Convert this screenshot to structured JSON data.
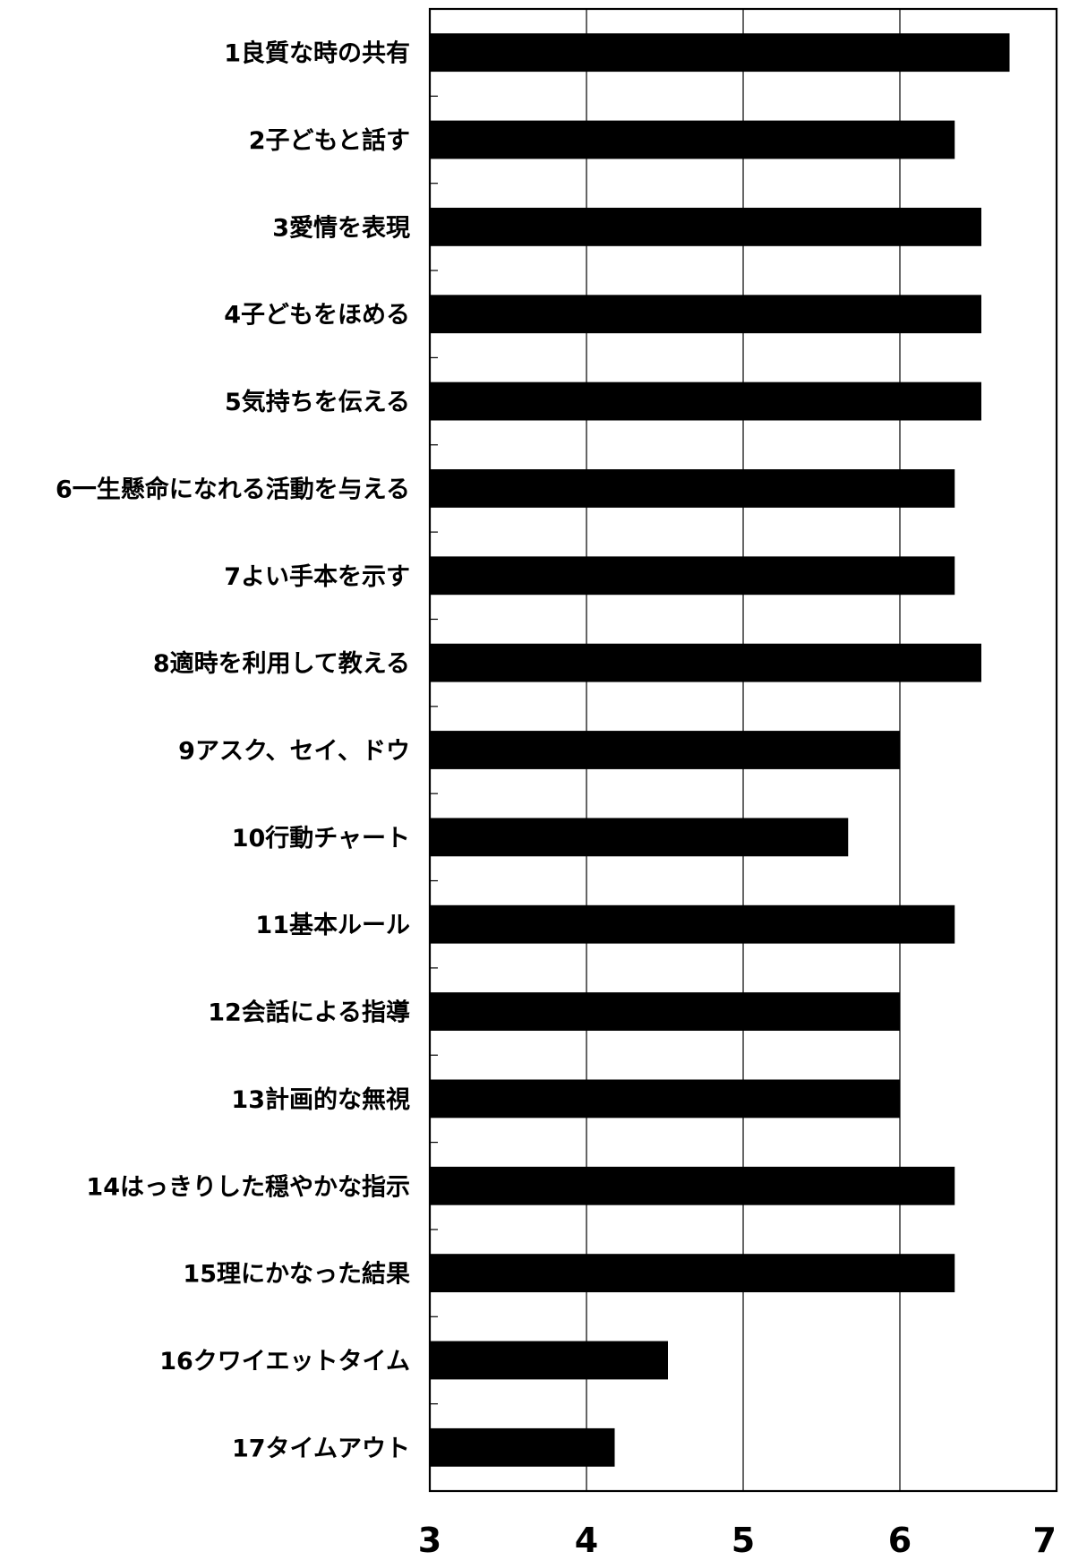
{
  "chart_data": {
    "type": "bar",
    "orientation": "horizontal",
    "title": "",
    "xlabel": "",
    "ylabel": "",
    "categories": [
      "1良質な時の共有",
      "2子どもと話す",
      "3愛情を表現",
      "4子どもをほめる",
      "5気持ちを伝える",
      "6一生懸命になれる活動を与える",
      "7よい手本を示す",
      "8適時を利用して教える",
      "9アスク、セイ、ドウ",
      "10行動チャート",
      "11基本ルール",
      "12会話による指導",
      "13計画的な無視",
      "14はっきりした穏やかな指示",
      "15理にかなった結果",
      "16クワイエットタイム",
      "17タイムアウト"
    ],
    "values": [
      6.7,
      6.35,
      6.52,
      6.52,
      6.52,
      6.35,
      6.35,
      6.52,
      6.0,
      5.67,
      6.35,
      6.0,
      6.0,
      6.35,
      6.35,
      4.52,
      4.18
    ],
    "xlim": [
      3,
      7
    ],
    "xticks": [
      "3",
      "4",
      "5",
      "6",
      "7"
    ],
    "grid": true,
    "legend": "none",
    "bar_color": "#000000"
  }
}
